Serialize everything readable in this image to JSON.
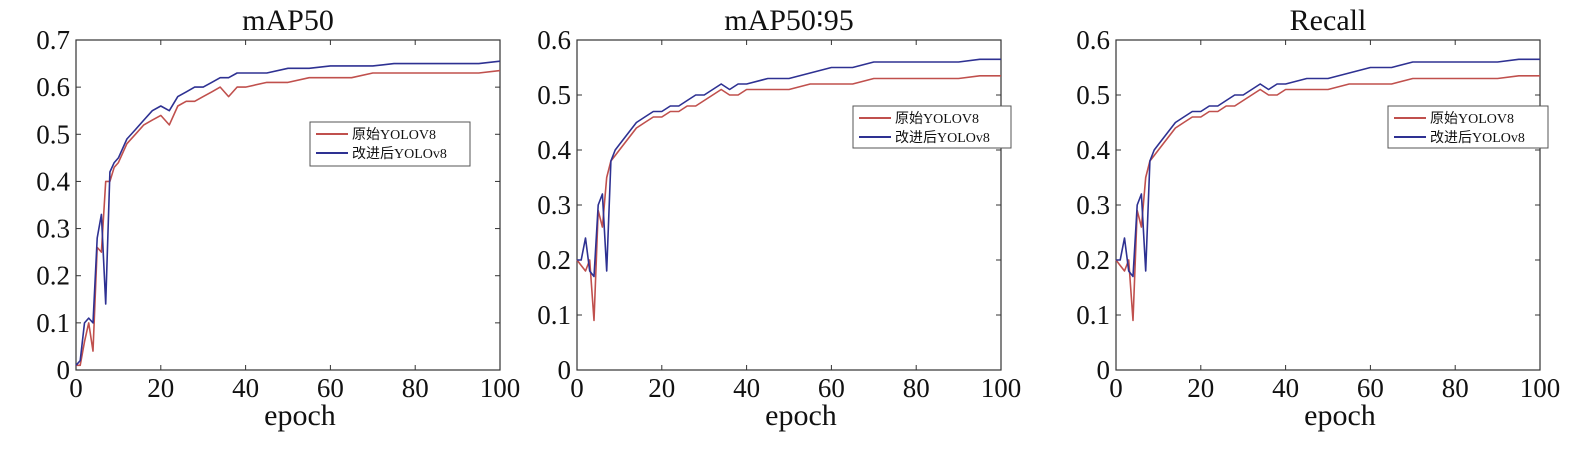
{
  "colors": {
    "original": "#c0504d",
    "improved": "#2e3192"
  },
  "chart_data": [
    {
      "type": "line",
      "title": "mAP50",
      "xlabel": "epoch",
      "xlim": [
        0,
        100
      ],
      "ylim": [
        0,
        0.7
      ],
      "xticks": [
        "0",
        "20",
        "40",
        "60",
        "80",
        "100"
      ],
      "yticks": [
        "0",
        "0.1",
        "0.2",
        "0.3",
        "0.4",
        "0.5",
        "0.6",
        "0.7"
      ],
      "legend_position": "center-right",
      "series": [
        {
          "name": "原始YOLOV8",
          "color": "#c0504d",
          "x": [
            0,
            1,
            2,
            3,
            4,
            5,
            6,
            7,
            8,
            9,
            10,
            12,
            14,
            16,
            18,
            20,
            22,
            24,
            26,
            28,
            30,
            32,
            34,
            36,
            38,
            40,
            45,
            50,
            55,
            60,
            65,
            70,
            75,
            80,
            85,
            90,
            95,
            100
          ],
          "y": [
            0.01,
            0.01,
            0.06,
            0.1,
            0.04,
            0.26,
            0.25,
            0.4,
            0.4,
            0.43,
            0.44,
            0.48,
            0.5,
            0.52,
            0.53,
            0.54,
            0.52,
            0.56,
            0.57,
            0.57,
            0.58,
            0.59,
            0.6,
            0.58,
            0.6,
            0.6,
            0.61,
            0.61,
            0.62,
            0.62,
            0.62,
            0.63,
            0.63,
            0.63,
            0.63,
            0.63,
            0.63,
            0.635
          ]
        },
        {
          "name": "改进后YOLOv8",
          "color": "#2e3192",
          "x": [
            0,
            1,
            2,
            3,
            4,
            5,
            6,
            7,
            8,
            9,
            10,
            12,
            14,
            16,
            18,
            20,
            22,
            24,
            26,
            28,
            30,
            32,
            34,
            36,
            38,
            40,
            45,
            50,
            55,
            60,
            65,
            70,
            75,
            80,
            85,
            90,
            95,
            100
          ],
          "y": [
            0.01,
            0.02,
            0.1,
            0.11,
            0.1,
            0.28,
            0.33,
            0.14,
            0.42,
            0.44,
            0.45,
            0.49,
            0.51,
            0.53,
            0.55,
            0.56,
            0.55,
            0.58,
            0.59,
            0.6,
            0.6,
            0.61,
            0.62,
            0.62,
            0.63,
            0.63,
            0.63,
            0.64,
            0.64,
            0.645,
            0.645,
            0.645,
            0.65,
            0.65,
            0.65,
            0.65,
            0.65,
            0.655
          ]
        }
      ]
    },
    {
      "type": "line",
      "title": "mAP50∶95",
      "xlabel": "epoch",
      "xlim": [
        0,
        100
      ],
      "ylim": [
        0,
        0.6
      ],
      "xticks": [
        "0",
        "20",
        "40",
        "60",
        "80",
        "100"
      ],
      "yticks": [
        "0",
        "0.1",
        "0.2",
        "0.3",
        "0.4",
        "0.5",
        "0.6"
      ],
      "legend_position": "top-right",
      "series": [
        {
          "name": "原始YOLOV8",
          "color": "#c0504d",
          "x": [
            0,
            1,
            2,
            3,
            4,
            5,
            6,
            7,
            8,
            9,
            10,
            12,
            14,
            16,
            18,
            20,
            22,
            24,
            26,
            28,
            30,
            32,
            34,
            36,
            38,
            40,
            45,
            50,
            55,
            60,
            65,
            70,
            75,
            80,
            85,
            90,
            95,
            100
          ],
          "y": [
            0.2,
            0.19,
            0.18,
            0.2,
            0.09,
            0.29,
            0.26,
            0.35,
            0.38,
            0.39,
            0.4,
            0.42,
            0.44,
            0.45,
            0.46,
            0.46,
            0.47,
            0.47,
            0.48,
            0.48,
            0.49,
            0.5,
            0.51,
            0.5,
            0.5,
            0.51,
            0.51,
            0.51,
            0.52,
            0.52,
            0.52,
            0.53,
            0.53,
            0.53,
            0.53,
            0.53,
            0.535,
            0.535
          ]
        },
        {
          "name": "改进后YOLOv8",
          "color": "#2e3192",
          "x": [
            0,
            1,
            2,
            3,
            4,
            5,
            6,
            7,
            8,
            9,
            10,
            12,
            14,
            16,
            18,
            20,
            22,
            24,
            26,
            28,
            30,
            32,
            34,
            36,
            38,
            40,
            45,
            50,
            55,
            60,
            65,
            70,
            75,
            80,
            85,
            90,
            95,
            100
          ],
          "y": [
            0.2,
            0.2,
            0.24,
            0.18,
            0.17,
            0.3,
            0.32,
            0.18,
            0.38,
            0.4,
            0.41,
            0.43,
            0.45,
            0.46,
            0.47,
            0.47,
            0.48,
            0.48,
            0.49,
            0.5,
            0.5,
            0.51,
            0.52,
            0.51,
            0.52,
            0.52,
            0.53,
            0.53,
            0.54,
            0.55,
            0.55,
            0.56,
            0.56,
            0.56,
            0.56,
            0.56,
            0.565,
            0.565
          ]
        }
      ]
    },
    {
      "type": "line",
      "title": "Recall",
      "xlabel": "epoch",
      "xlim": [
        0,
        100
      ],
      "ylim": [
        0,
        0.6
      ],
      "xticks": [
        "0",
        "20",
        "40",
        "60",
        "80",
        "100"
      ],
      "yticks": [
        "0",
        "0.1",
        "0.2",
        "0.3",
        "0.4",
        "0.5",
        "0.6"
      ],
      "legend_position": "top-right",
      "series": [
        {
          "name": "原始YOLOV8",
          "color": "#c0504d",
          "x": [
            0,
            1,
            2,
            3,
            4,
            5,
            6,
            7,
            8,
            9,
            10,
            12,
            14,
            16,
            18,
            20,
            22,
            24,
            26,
            28,
            30,
            32,
            34,
            36,
            38,
            40,
            45,
            50,
            55,
            60,
            65,
            70,
            75,
            80,
            85,
            90,
            95,
            100
          ],
          "y": [
            0.2,
            0.19,
            0.18,
            0.2,
            0.09,
            0.29,
            0.26,
            0.35,
            0.38,
            0.39,
            0.4,
            0.42,
            0.44,
            0.45,
            0.46,
            0.46,
            0.47,
            0.47,
            0.48,
            0.48,
            0.49,
            0.5,
            0.51,
            0.5,
            0.5,
            0.51,
            0.51,
            0.51,
            0.52,
            0.52,
            0.52,
            0.53,
            0.53,
            0.53,
            0.53,
            0.53,
            0.535,
            0.535
          ]
        },
        {
          "name": "改进后YOLOv8",
          "color": "#2e3192",
          "x": [
            0,
            1,
            2,
            3,
            4,
            5,
            6,
            7,
            8,
            9,
            10,
            12,
            14,
            16,
            18,
            20,
            22,
            24,
            26,
            28,
            30,
            32,
            34,
            36,
            38,
            40,
            45,
            50,
            55,
            60,
            65,
            70,
            75,
            80,
            85,
            90,
            95,
            100
          ],
          "y": [
            0.2,
            0.2,
            0.24,
            0.18,
            0.17,
            0.3,
            0.32,
            0.18,
            0.38,
            0.4,
            0.41,
            0.43,
            0.45,
            0.46,
            0.47,
            0.47,
            0.48,
            0.48,
            0.49,
            0.5,
            0.5,
            0.51,
            0.52,
            0.51,
            0.52,
            0.52,
            0.53,
            0.53,
            0.54,
            0.55,
            0.55,
            0.56,
            0.56,
            0.56,
            0.56,
            0.56,
            0.565,
            0.565
          ]
        }
      ]
    }
  ]
}
